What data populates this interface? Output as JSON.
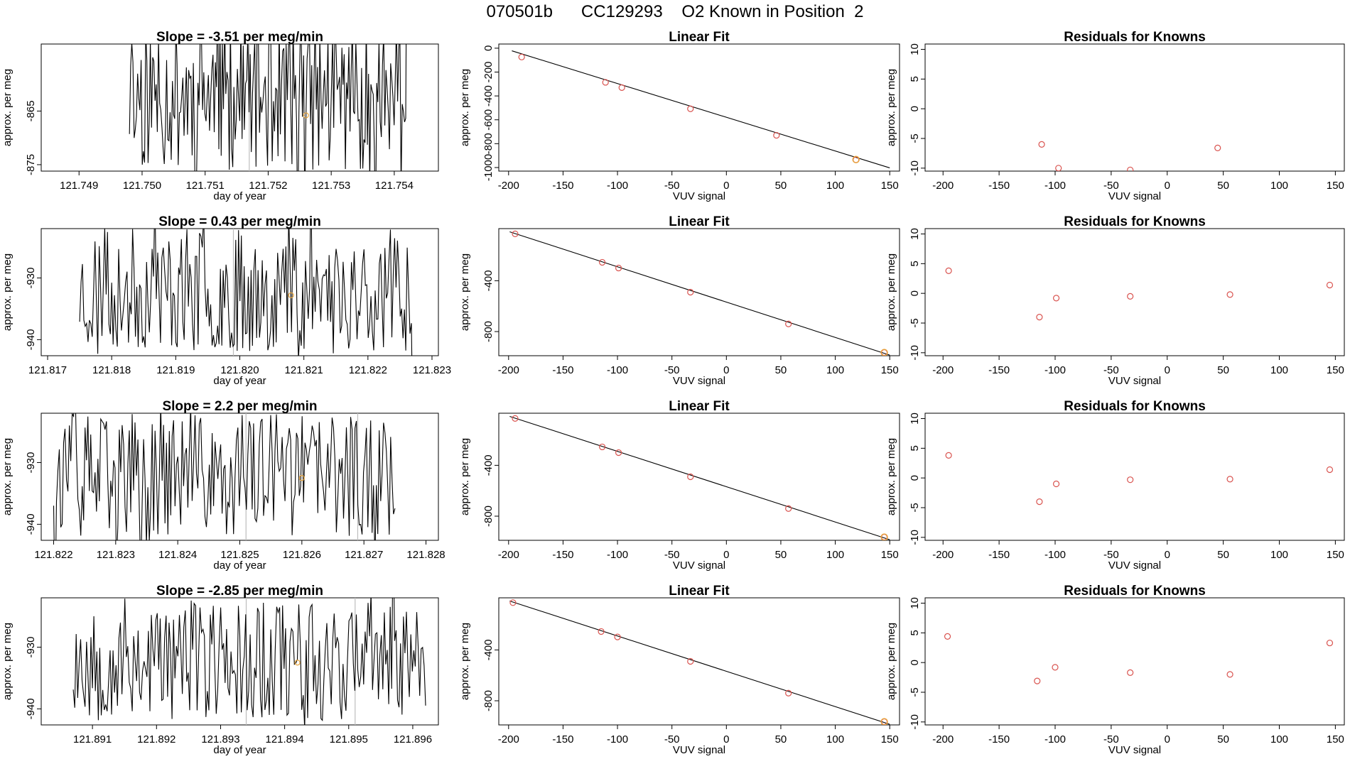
{
  "page_title": "070501b      CC129293    O2 Known in Position  2",
  "colors": {
    "known_point": "#d9534f",
    "highlight_point": "#e8a53c",
    "line": "#000000",
    "marker_line": "#bdbdbd"
  },
  "chart_data": [
    {
      "type": "line",
      "panel": "timeseries",
      "row": 1,
      "title": "Slope =  -3.51  per meg/min",
      "xlabel": "day of year",
      "ylabel": "approx. per meg",
      "xlim": [
        121.7484,
        121.7547
      ],
      "ylim": [
        -876.2,
        -852.5
      ],
      "xticks": [
        121.749,
        121.75,
        121.751,
        121.752,
        121.753,
        121.754
      ],
      "xtick_labels": [
        "121.749",
        "121.750",
        "121.751",
        "121.752",
        "121.753",
        "121.754"
      ],
      "yticks": [
        -865,
        -875
      ],
      "ytick_labels": [
        "-865",
        "-875"
      ],
      "marker_lines": [
        121.7517
      ],
      "highlight_point": {
        "x": 121.7526,
        "y": -865.8
      },
      "trace": {
        "start": 121.7498,
        "end": 121.7542,
        "mean": -862,
        "amp": 14,
        "seed": 11
      }
    },
    {
      "type": "scatter",
      "panel": "linear_fit",
      "row": 1,
      "title": "Linear Fit",
      "xlabel": "VUV signal",
      "ylabel": "approx. per meg",
      "xlim": [
        -209,
        159
      ],
      "ylim": [
        -1030,
        35
      ],
      "xticks": [
        -200,
        -150,
        -100,
        -50,
        0,
        50,
        100,
        150
      ],
      "xtick_labels": [
        "-200",
        "-150",
        "-100",
        "-50",
        "0",
        "50",
        "100",
        "150"
      ],
      "yticks": [
        0,
        -200,
        -400,
        -600,
        -800,
        -1000
      ],
      "ytick_labels": [
        "0",
        "-200",
        "-400",
        "-600",
        "-800",
        "-1000"
      ],
      "fit_line": {
        "x": [
          -197,
          150
        ],
        "y": [
          -22,
          -1003
        ]
      },
      "points": {
        "x": [
          -188,
          -111,
          -96,
          -33,
          46,
          119
        ],
        "y": [
          -74,
          -286,
          -330,
          -508,
          -730,
          -935
        ]
      },
      "highlight": {
        "x": 119,
        "y": -933
      }
    },
    {
      "type": "scatter",
      "panel": "residuals",
      "row": 1,
      "title": "Residuals for Knowns",
      "xlabel": "VUV signal",
      "ylabel": "approx. per meg",
      "xlim": [
        -216,
        158
      ],
      "ylim": [
        -10.5,
        10.9
      ],
      "xticks": [
        -200,
        -150,
        -100,
        -50,
        0,
        50,
        100,
        150
      ],
      "xtick_labels": [
        "-200",
        "-150",
        "-100",
        "-50",
        "0",
        "50",
        "100",
        "150"
      ],
      "yticks": [
        10,
        5,
        0,
        -5,
        -10
      ],
      "ytick_labels": [
        "10",
        "5",
        "0",
        "-5",
        "-10"
      ],
      "points": {
        "x": [
          -112,
          -97,
          -33,
          45
        ],
        "y": [
          -6,
          -10,
          -10.3,
          -6.6
        ]
      }
    },
    {
      "type": "line",
      "panel": "timeseries",
      "row": 2,
      "title": "Slope =  0.43  per meg/min",
      "xlabel": "day of year",
      "ylabel": "approx. per meg",
      "xlim": [
        121.8169,
        121.8231
      ],
      "ylim": [
        -942.6,
        -922.0
      ],
      "xticks": [
        121.817,
        121.818,
        121.819,
        121.82,
        121.821,
        121.822,
        121.823
      ],
      "xtick_labels": [
        "121.817",
        "121.818",
        "121.819",
        "121.820",
        "121.821",
        "121.822",
        "121.823"
      ],
      "yticks": [
        -930,
        -940
      ],
      "ytick_labels": [
        "-930",
        "-940"
      ],
      "marker_lines": [
        121.8199
      ],
      "highlight_point": {
        "x": 121.8208,
        "y": -932.8
      },
      "trace": {
        "start": 121.8175,
        "end": 121.8227,
        "mean": -932,
        "amp": 10,
        "seed": 23
      }
    },
    {
      "type": "scatter",
      "panel": "linear_fit",
      "row": 2,
      "title": "Linear Fit",
      "xlabel": "VUV signal",
      "ylabel": "approx. per meg",
      "xlim": [
        -209,
        159
      ],
      "ylim": [
        -990,
        10
      ],
      "xticks": [
        -200,
        -150,
        -100,
        -50,
        0,
        50,
        100,
        150
      ],
      "xtick_labels": [
        "-200",
        "-150",
        "-100",
        "-50",
        "0",
        "50",
        "100",
        "150"
      ],
      "yticks": [
        -400,
        -800
      ],
      "ytick_labels": [
        "-400",
        "-800"
      ],
      "fit_line": {
        "x": [
          -199,
          150
        ],
        "y": [
          -15,
          -985
        ]
      },
      "points": {
        "x": [
          -194,
          -114,
          -99,
          -33,
          57,
          145
        ],
        "y": [
          -31,
          -255,
          -300,
          -490,
          -740,
          -965
        ]
      },
      "highlight": {
        "x": 145,
        "y": -965
      }
    },
    {
      "type": "scatter",
      "panel": "residuals",
      "row": 2,
      "title": "Residuals for Knowns",
      "xlabel": "VUV signal",
      "ylabel": "approx. per meg",
      "xlim": [
        -216,
        158
      ],
      "ylim": [
        -10.5,
        10.9
      ],
      "xticks": [
        -200,
        -150,
        -100,
        -50,
        0,
        50,
        100,
        150
      ],
      "xtick_labels": [
        "-200",
        "-150",
        "-100",
        "-50",
        "0",
        "50",
        "100",
        "150"
      ],
      "yticks": [
        10,
        5,
        0,
        -5,
        -10
      ],
      "ytick_labels": [
        "10",
        "5",
        "0",
        "-5",
        "-10"
      ],
      "points": {
        "x": [
          -195,
          -114,
          -99,
          -33,
          56,
          145
        ],
        "y": [
          3.8,
          -4,
          -0.8,
          -0.5,
          -0.2,
          1.4
        ]
      }
    },
    {
      "type": "line",
      "panel": "timeseries",
      "row": 3,
      "title": "Slope =  2.2  per meg/min",
      "xlabel": "day of year",
      "ylabel": "approx. per meg",
      "xlim": [
        121.8218,
        121.8282
      ],
      "ylim": [
        -942.6,
        -922.0
      ],
      "xticks": [
        121.822,
        121.823,
        121.824,
        121.825,
        121.826,
        121.827,
        121.828
      ],
      "xtick_labels": [
        "121.822",
        "121.823",
        "121.824",
        "121.825",
        "121.826",
        "121.827",
        "121.828"
      ],
      "yticks": [
        -930,
        -940
      ],
      "ytick_labels": [
        "-930",
        "-940"
      ],
      "marker_lines": [
        121.8251,
        121.8269
      ],
      "highlight_point": {
        "x": 121.826,
        "y": -932.5
      },
      "trace": {
        "start": 121.822,
        "end": 121.8275,
        "mean": -932,
        "amp": 10,
        "seed": 37
      }
    },
    {
      "type": "scatter",
      "panel": "linear_fit",
      "row": 3,
      "title": "Linear Fit",
      "xlabel": "VUV signal",
      "ylabel": "approx. per meg",
      "xlim": [
        -209,
        159
      ],
      "ylim": [
        -990,
        10
      ],
      "xticks": [
        -200,
        -150,
        -100,
        -50,
        0,
        50,
        100,
        150
      ],
      "xtick_labels": [
        "-200",
        "-150",
        "-100",
        "-50",
        "0",
        "50",
        "100",
        "150"
      ],
      "yticks": [
        -400,
        -800
      ],
      "ytick_labels": [
        "-400",
        "-800"
      ],
      "fit_line": {
        "x": [
          -199,
          150
        ],
        "y": [
          -15,
          -985
        ]
      },
      "points": {
        "x": [
          -194,
          -114,
          -99,
          -33,
          57,
          145
        ],
        "y": [
          -31,
          -255,
          -300,
          -490,
          -740,
          -965
        ]
      },
      "highlight": {
        "x": 145,
        "y": -965
      }
    },
    {
      "type": "scatter",
      "panel": "residuals",
      "row": 3,
      "title": "Residuals for Knowns",
      "xlabel": "VUV signal",
      "ylabel": "approx. per meg",
      "xlim": [
        -216,
        158
      ],
      "ylim": [
        -10.5,
        10.9
      ],
      "xticks": [
        -200,
        -150,
        -100,
        -50,
        0,
        50,
        100,
        150
      ],
      "xtick_labels": [
        "-200",
        "-150",
        "-100",
        "-50",
        "0",
        "50",
        "100",
        "150"
      ],
      "yticks": [
        10,
        5,
        0,
        -5,
        -10
      ],
      "ytick_labels": [
        "10",
        "5",
        "0",
        "-5",
        "-10"
      ],
      "points": {
        "x": [
          -195,
          -114,
          -99,
          -33,
          56,
          145
        ],
        "y": [
          3.8,
          -4,
          -1,
          -0.3,
          -0.2,
          1.4
        ]
      }
    },
    {
      "type": "line",
      "panel": "timeseries",
      "row": 4,
      "title": "Slope =  -2.85  per meg/min",
      "xlabel": "day of year",
      "ylabel": "approx. per meg",
      "xlim": [
        121.8902,
        121.8964
      ],
      "ylim": [
        -942.6,
        -922.0
      ],
      "xticks": [
        121.891,
        121.892,
        121.893,
        121.894,
        121.895,
        121.896
      ],
      "xtick_labels": [
        "121.891",
        "121.892",
        "121.893",
        "121.894",
        "121.895",
        "121.896"
      ],
      "yticks": [
        -930,
        -940
      ],
      "ytick_labels": [
        "-930",
        "-940"
      ],
      "marker_lines": [
        121.8934,
        121.8951
      ],
      "highlight_point": {
        "x": 121.8942,
        "y": -932.5
      },
      "trace": {
        "start": 121.8907,
        "end": 121.8962,
        "mean": -932,
        "amp": 10,
        "seed": 53
      }
    },
    {
      "type": "scatter",
      "panel": "linear_fit",
      "row": 4,
      "title": "Linear Fit",
      "xlabel": "VUV signal",
      "ylabel": "approx. per meg",
      "xlim": [
        -209,
        159
      ],
      "ylim": [
        -990,
        10
      ],
      "xticks": [
        -200,
        -150,
        -100,
        -50,
        0,
        50,
        100,
        150
      ],
      "xtick_labels": [
        "-200",
        "-150",
        "-100",
        "-50",
        "0",
        "50",
        "100",
        "150"
      ],
      "yticks": [
        -400,
        -800
      ],
      "ytick_labels": [
        "-400",
        "-800"
      ],
      "fit_line": {
        "x": [
          -199,
          150
        ],
        "y": [
          -15,
          -985
        ]
      },
      "points": {
        "x": [
          -196,
          -115,
          -100,
          -33,
          57,
          145
        ],
        "y": [
          -28,
          -255,
          -298,
          -490,
          -740,
          -965
        ]
      },
      "highlight": {
        "x": 145,
        "y": -965
      }
    },
    {
      "type": "scatter",
      "panel": "residuals",
      "row": 4,
      "title": "Residuals for Knowns",
      "xlabel": "VUV signal",
      "ylabel": "approx. per meg",
      "xlim": [
        -216,
        158
      ],
      "ylim": [
        -10.5,
        10.9
      ],
      "xticks": [
        -200,
        -150,
        -100,
        -50,
        0,
        50,
        100,
        150
      ],
      "xtick_labels": [
        "-200",
        "-150",
        "-100",
        "-50",
        "0",
        "50",
        "100",
        "150"
      ],
      "yticks": [
        10,
        5,
        0,
        -5,
        -10
      ],
      "ytick_labels": [
        "10",
        "5",
        "0",
        "-5",
        "-10"
      ],
      "points": {
        "x": [
          -196,
          -116,
          -100,
          -33,
          56,
          145
        ],
        "y": [
          4.4,
          -3.1,
          -0.8,
          -1.7,
          -2,
          3.3
        ]
      }
    }
  ]
}
